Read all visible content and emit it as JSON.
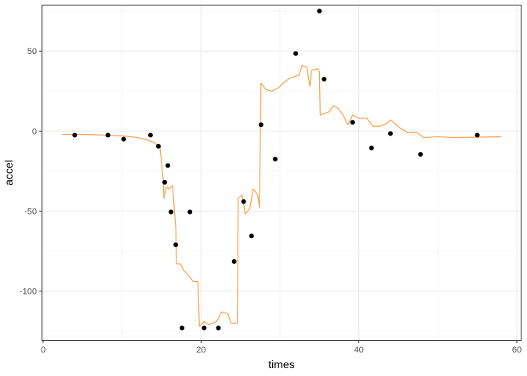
{
  "chart_data": {
    "type": "scatter",
    "title": "",
    "xlabel": "times",
    "ylabel": "accel",
    "xlim": [
      -0.2,
      60.6
    ],
    "ylim": [
      -131,
      79
    ],
    "x_ticks": [
      0,
      20,
      40,
      60
    ],
    "x_tick_labels": [
      "0",
      "20",
      "40",
      "60"
    ],
    "y_ticks": [
      50,
      0,
      -50,
      -100
    ],
    "y_tick_labels": [
      "50",
      "0",
      "-50",
      "-100"
    ],
    "x_minor_ticks": [
      10,
      30,
      50
    ],
    "y_minor_ticks": [
      75,
      25,
      -25,
      -75,
      -125
    ],
    "grid": true,
    "theme": "bw",
    "points_color": "#000000",
    "line_color": "#F7A04A",
    "points": [
      {
        "x": 4.0,
        "y": -2.5
      },
      {
        "x": 8.2,
        "y": -2.5
      },
      {
        "x": 10.2,
        "y": -5.0
      },
      {
        "x": 13.6,
        "y": -2.5
      },
      {
        "x": 14.6,
        "y": -9.5
      },
      {
        "x": 15.4,
        "y": -32.0
      },
      {
        "x": 15.8,
        "y": -21.5
      },
      {
        "x": 16.2,
        "y": -50.5
      },
      {
        "x": 16.8,
        "y": -71.0
      },
      {
        "x": 17.6,
        "y": -123.0
      },
      {
        "x": 18.6,
        "y": -50.5
      },
      {
        "x": 20.4,
        "y": -123.0
      },
      {
        "x": 22.2,
        "y": -123.0
      },
      {
        "x": 24.2,
        "y": -81.5
      },
      {
        "x": 25.4,
        "y": -44.0
      },
      {
        "x": 26.4,
        "y": -65.5
      },
      {
        "x": 27.6,
        "y": 4.0
      },
      {
        "x": 29.4,
        "y": -17.5
      },
      {
        "x": 32.0,
        "y": 48.5
      },
      {
        "x": 35.0,
        "y": 75.0
      },
      {
        "x": 35.6,
        "y": 32.5
      },
      {
        "x": 39.2,
        "y": 5.5
      },
      {
        "x": 41.6,
        "y": -10.5
      },
      {
        "x": 44.0,
        "y": -1.5
      },
      {
        "x": 47.8,
        "y": -14.5
      },
      {
        "x": 55.0,
        "y": -2.5
      }
    ],
    "fitted_line": [
      {
        "x": 2.4,
        "y": -2.0
      },
      {
        "x": 5.0,
        "y": -2.0
      },
      {
        "x": 8.0,
        "y": -2.5
      },
      {
        "x": 10.0,
        "y": -3.0
      },
      {
        "x": 12.0,
        "y": -4.0
      },
      {
        "x": 13.2,
        "y": -5.5
      },
      {
        "x": 14.0,
        "y": -7.0
      },
      {
        "x": 14.5,
        "y": -9.0
      },
      {
        "x": 14.8,
        "y": -10.0
      },
      {
        "x": 15.0,
        "y": -20.0
      },
      {
        "x": 15.2,
        "y": -30.0
      },
      {
        "x": 15.3,
        "y": -42.0
      },
      {
        "x": 15.6,
        "y": -35.0
      },
      {
        "x": 16.0,
        "y": -36.0
      },
      {
        "x": 16.4,
        "y": -34.0
      },
      {
        "x": 16.6,
        "y": -48.0
      },
      {
        "x": 16.8,
        "y": -60.0
      },
      {
        "x": 16.9,
        "y": -83.0
      },
      {
        "x": 17.4,
        "y": -83.0
      },
      {
        "x": 17.8,
        "y": -87.0
      },
      {
        "x": 18.4,
        "y": -90.0
      },
      {
        "x": 19.0,
        "y": -94.0
      },
      {
        "x": 19.6,
        "y": -94.0
      },
      {
        "x": 19.8,
        "y": -122.0
      },
      {
        "x": 20.4,
        "y": -119.0
      },
      {
        "x": 21.0,
        "y": -121.0
      },
      {
        "x": 22.0,
        "y": -119.0
      },
      {
        "x": 22.6,
        "y": -113.0
      },
      {
        "x": 23.4,
        "y": -114.0
      },
      {
        "x": 23.8,
        "y": -120.0
      },
      {
        "x": 24.6,
        "y": -120.0
      },
      {
        "x": 24.7,
        "y": -42.0
      },
      {
        "x": 25.2,
        "y": -40.0
      },
      {
        "x": 25.6,
        "y": -52.0
      },
      {
        "x": 26.2,
        "y": -48.0
      },
      {
        "x": 26.6,
        "y": -36.0
      },
      {
        "x": 27.2,
        "y": -40.0
      },
      {
        "x": 27.4,
        "y": -48.0
      },
      {
        "x": 27.6,
        "y": 30.0
      },
      {
        "x": 28.2,
        "y": 26.0
      },
      {
        "x": 29.0,
        "y": 25.0
      },
      {
        "x": 29.8,
        "y": 27.0
      },
      {
        "x": 30.4,
        "y": 30.0
      },
      {
        "x": 31.2,
        "y": 33.0
      },
      {
        "x": 32.4,
        "y": 35.0
      },
      {
        "x": 32.8,
        "y": 41.0
      },
      {
        "x": 33.4,
        "y": 40.0
      },
      {
        "x": 33.8,
        "y": 28.0
      },
      {
        "x": 34.0,
        "y": 38.0
      },
      {
        "x": 34.8,
        "y": 39.0
      },
      {
        "x": 35.0,
        "y": 37.0
      },
      {
        "x": 35.1,
        "y": 10.0
      },
      {
        "x": 36.2,
        "y": 12.0
      },
      {
        "x": 36.8,
        "y": 16.0
      },
      {
        "x": 37.4,
        "y": 14.0
      },
      {
        "x": 38.0,
        "y": 10.0
      },
      {
        "x": 38.6,
        "y": 4.0
      },
      {
        "x": 39.2,
        "y": 10.0
      },
      {
        "x": 40.0,
        "y": 8.0
      },
      {
        "x": 41.0,
        "y": 8.0
      },
      {
        "x": 41.8,
        "y": 3.0
      },
      {
        "x": 42.6,
        "y": 3.0
      },
      {
        "x": 43.6,
        "y": 5.0
      },
      {
        "x": 44.0,
        "y": 7.0
      },
      {
        "x": 45.2,
        "y": 2.0
      },
      {
        "x": 46.2,
        "y": -1.0
      },
      {
        "x": 47.4,
        "y": -1.0
      },
      {
        "x": 48.2,
        "y": -4.0
      },
      {
        "x": 50.0,
        "y": -3.5
      },
      {
        "x": 52.0,
        "y": -4.0
      },
      {
        "x": 58.0,
        "y": -3.5
      }
    ]
  }
}
